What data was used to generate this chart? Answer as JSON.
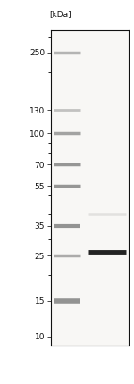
{
  "ylabel": "[kDa]",
  "bg_color": "#ffffff",
  "gel_bg": "#f8f7f5",
  "band_color": "#505050",
  "sample_band_color": "#111111",
  "border_color": "#111111",
  "label_color": "#111111",
  "title_fontsize": 7.0,
  "label_fontsize": 6.5,
  "marker_labels": [
    250,
    130,
    100,
    70,
    55,
    35,
    25,
    15,
    10
  ],
  "marker_band_alphas": [
    0.4,
    0.32,
    0.5,
    0.58,
    0.58,
    0.6,
    0.45,
    0.6,
    0.0
  ],
  "marker_band_thickness": [
    2.5,
    2.0,
    2.5,
    2.5,
    2.5,
    3.0,
    2.5,
    4.0,
    0.0
  ],
  "faint_band_kda": 40,
  "faint_band_alpha": 0.13,
  "faint_band_thickness": 1.8,
  "sample_band_kda": 26,
  "sample_band_alpha": 0.92,
  "sample_band_thickness": 3.5
}
